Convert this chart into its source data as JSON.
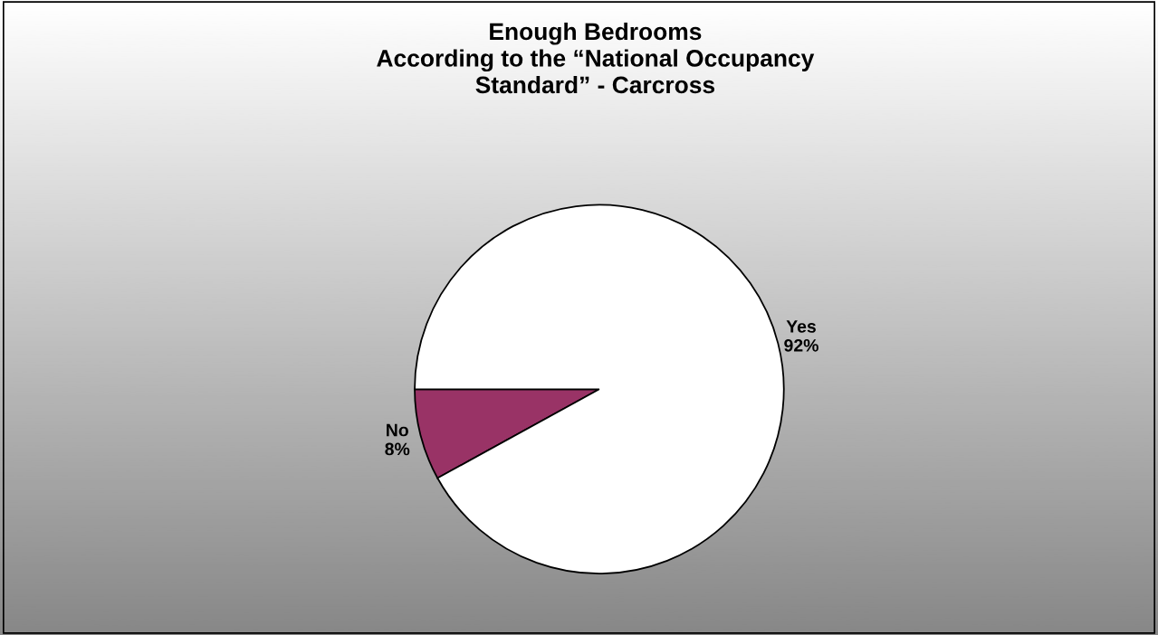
{
  "chart_data": {
    "type": "pie",
    "title": "Enough Bedrooms\nAccording to the “National Occupancy\nStandard” - Carcross",
    "categories": [
      "No",
      "Yes"
    ],
    "values": [
      8,
      92
    ],
    "value_labels": [
      "8%",
      "92%"
    ],
    "colors": [
      "#993366",
      "#ffffff"
    ],
    "legend": false
  }
}
